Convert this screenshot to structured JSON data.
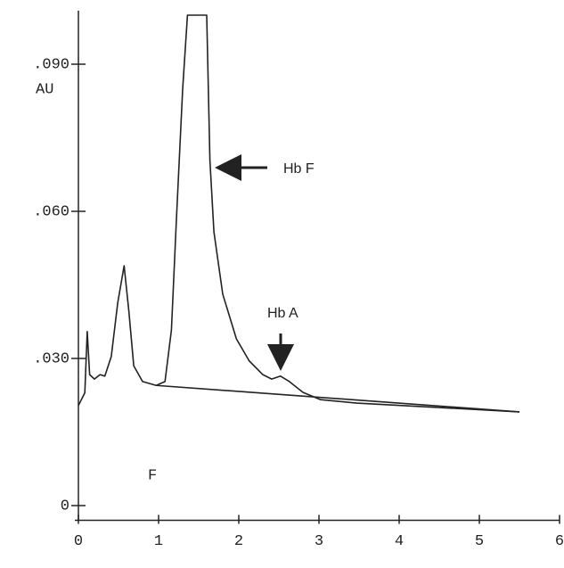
{
  "chart_data": {
    "type": "line",
    "y_label": "AU",
    "annotations": [
      "Hb F",
      "Hb A",
      "F"
    ],
    "xlim": [
      0,
      6
    ],
    "xticks": [
      0,
      1,
      2,
      3,
      4,
      5,
      6
    ],
    "ylim": [
      -0.003,
      0.1
    ],
    "yticks": [
      0,
      {
        "value": 0.03,
        "label": ".030"
      },
      {
        "value": 0.06,
        "label": ".060"
      },
      {
        "value": 0.09,
        "label": ".090"
      }
    ],
    "series": [
      {
        "color": "#222222",
        "x": [
          0,
          0.08,
          0.11,
          0.14,
          0.2,
          0.27,
          0.33,
          0.41,
          0.49,
          0.57,
          0.63,
          0.69,
          0.8,
          0.97,
          1.08,
          1.16,
          1.22,
          1.3,
          1.36,
          1.6,
          1.64,
          1.69,
          1.8,
          1.97,
          2.13,
          2.3,
          2.41,
          2.52,
          2.63,
          2.8,
          3.02,
          3.47,
          5.5
        ],
        "values": [
          0.0204,
          0.023,
          0.0355,
          0.0267,
          0.0258,
          0.0267,
          0.0264,
          0.0304,
          0.0413,
          0.0489,
          0.0395,
          0.0285,
          0.0253,
          0.0245,
          0.0253,
          0.0358,
          0.0576,
          0.0849,
          0.1,
          0.1,
          0.0704,
          0.0558,
          0.0431,
          0.034,
          0.0295,
          0.0267,
          0.0258,
          0.0264,
          0.0253,
          0.0231,
          0.0216,
          0.0209,
          0.0191
        ]
      },
      {
        "color": "#222222",
        "x": [
          0.97,
          5.5
        ],
        "values": [
          0.0245,
          0.0191
        ]
      }
    ]
  }
}
